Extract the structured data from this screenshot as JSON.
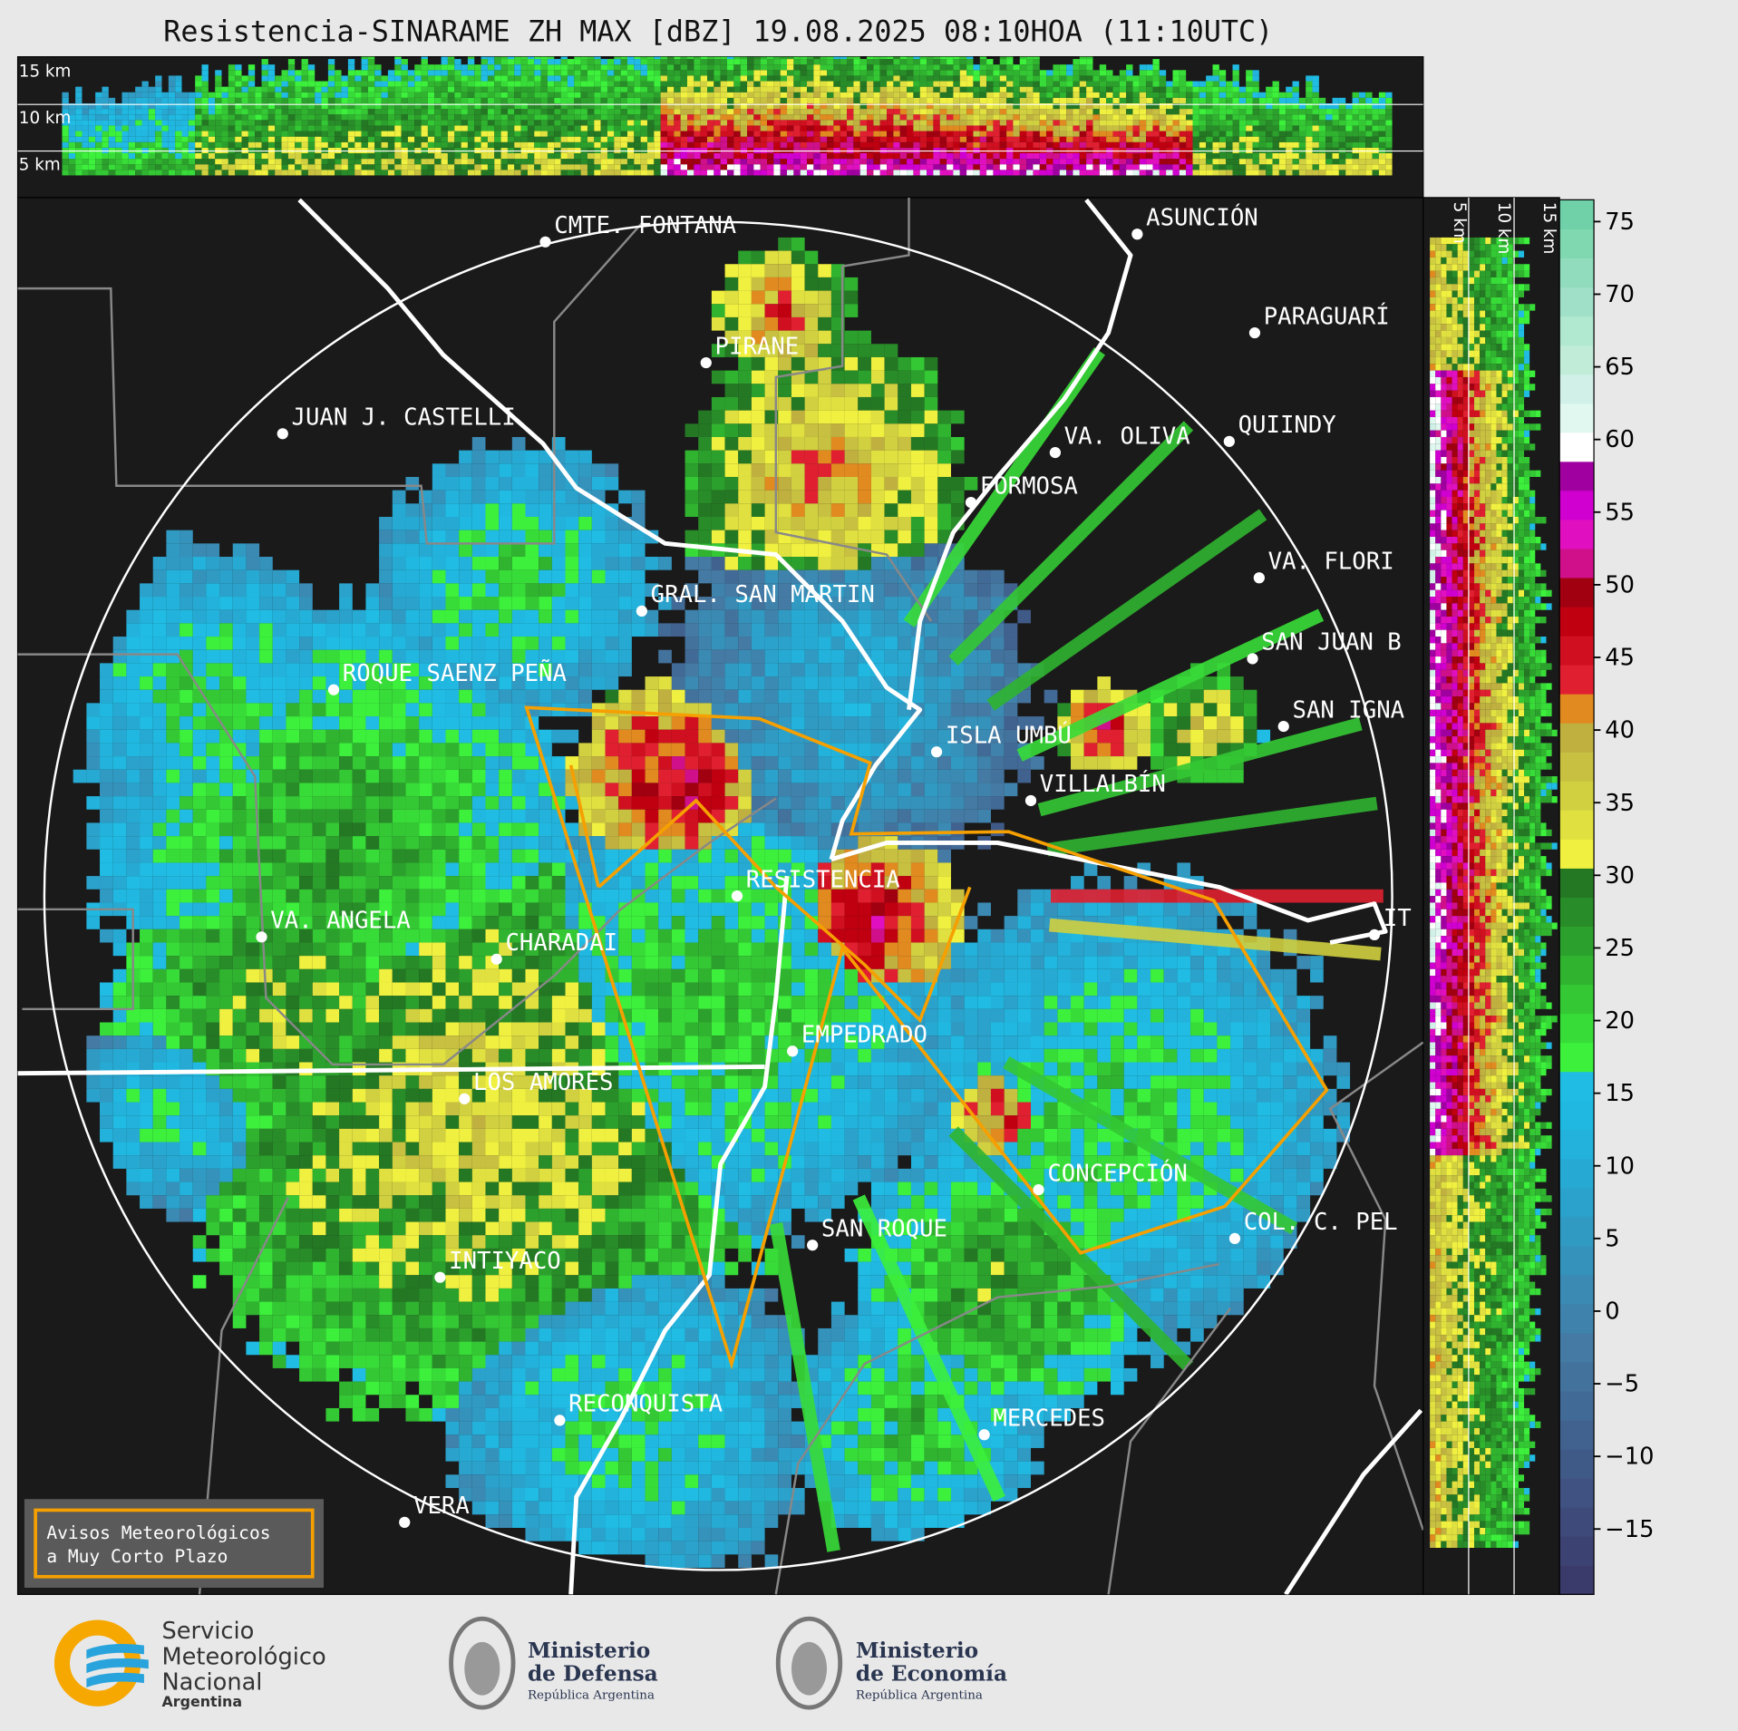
{
  "title": "Resistencia-SINARAME ZH MAX [dBZ] 19.08.2025 08:10HOA (11:10UTC)",
  "vertical_panel": {
    "top_labels": [
      "15 km",
      "10 km",
      "5 km"
    ],
    "side_labels": [
      "5 km",
      "10 km",
      "15 km"
    ]
  },
  "colorbar": {
    "lim": [
      -19.5,
      76.5
    ],
    "ticks": [
      {
        "value": -15,
        "label": "−15"
      },
      {
        "value": -10,
        "label": "−10"
      },
      {
        "value": -5,
        "label": "−5"
      },
      0,
      5,
      10,
      15,
      20,
      25,
      30,
      35,
      40,
      45,
      50,
      55,
      60,
      65,
      70,
      75
    ],
    "colors": [
      "#3b3b6b",
      "#3c4272",
      "#3e4a79",
      "#3f5281",
      "#405a88",
      "#41628f",
      "#426a96",
      "#43729c",
      "#447aa3",
      "#3f82ab",
      "#3a8ab3",
      "#3592bb",
      "#309ac3",
      "#2ba2cb",
      "#26aad3",
      "#22b2db",
      "#20b8e0",
      "#20bce4",
      "#3cf03c",
      "#38dc38",
      "#34c834",
      "#30b430",
      "#2ca02c",
      "#288c28",
      "#247824",
      "#f0f040",
      "#e0e040",
      "#d0d040",
      "#c8c040",
      "#c0b040",
      "#e08a20",
      "#e02030",
      "#d01020",
      "#c00010",
      "#a00010",
      "#d0108a",
      "#e010c0",
      "#d000d0",
      "#a000a0",
      "#ffffff",
      "#e0f8f0",
      "#d0f0e8",
      "#c0ecd8",
      "#b0e8d0",
      "#a0e0c8",
      "#90dcbc",
      "#80d8b0",
      "#70d0a8"
    ]
  },
  "cities": [
    "CMTE. FONTANA",
    "ASUNCIÓN",
    "PARAGUARÍ",
    "PIRANE",
    "JUAN J. CASTELLI",
    "VA. OLIVA",
    "QUIINDY",
    "FORMOSA",
    "VA. FLORI",
    "GRAL. SAN MARTIN",
    "SAN JUAN B",
    "ROQUE SAENZ PEÑA",
    "SAN IGNA",
    "ISLA UMBÚ",
    "VILLALBÍN",
    "RESISTENCIA",
    "VA. ANGELA",
    "CHARADAI",
    "IT",
    "EMPEDRADO",
    "LOS AMORES",
    "CONCEPCIÓN",
    "SAN ROQUE",
    "COL. C. PEL",
    "INTIYACO",
    "RECONQUISTA",
    "MERCEDES",
    "VERA"
  ],
  "legend_box": {
    "lines": [
      "Avisos Meteorológicos",
      "a Muy Corto Plazo"
    ]
  },
  "footer": {
    "smn": {
      "lines": [
        "Servicio",
        "Meteorológico",
        "Nacional"
      ],
      "country": "Argentina"
    },
    "ministries": [
      {
        "name_lines": [
          "Ministerio",
          "de Defensa"
        ],
        "subtitle": "República Argentina"
      },
      {
        "name_lines": [
          "Ministerio",
          "de Economía"
        ],
        "subtitle": "República Argentina"
      }
    ]
  }
}
